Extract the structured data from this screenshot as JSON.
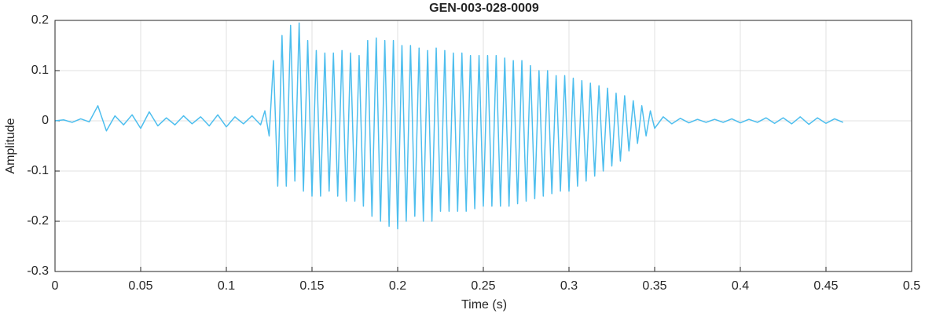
{
  "chart_data": {
    "type": "line",
    "title": "GEN-003-028-0009",
    "x_label": "Time (s)",
    "y_label": "Amplitude",
    "color": "#4dbeee",
    "grid": true,
    "xlim": [
      0,
      0.5
    ],
    "ylim": [
      -0.3,
      0.2
    ],
    "xticks": [
      0,
      0.05,
      0.1,
      0.15,
      0.2,
      0.25,
      0.3,
      0.35,
      0.4,
      0.45,
      0.5
    ],
    "yticks": [
      -0.3,
      -0.2,
      -0.1,
      0,
      0.1,
      0.2
    ],
    "x": [
      0,
      0.005,
      0.01,
      0.015,
      0.02,
      0.025,
      0.03,
      0.035,
      0.04,
      0.045,
      0.05,
      0.055,
      0.06,
      0.065,
      0.07,
      0.075,
      0.08,
      0.085,
      0.09,
      0.095,
      0.1,
      0.105,
      0.11,
      0.115,
      0.12,
      0.1225,
      0.125,
      0.1275,
      0.13,
      0.1325,
      0.135,
      0.1375,
      0.14,
      0.1425,
      0.145,
      0.1475,
      0.15,
      0.1525,
      0.155,
      0.1575,
      0.16,
      0.1625,
      0.165,
      0.1675,
      0.17,
      0.1725,
      0.175,
      0.1775,
      0.18,
      0.1825,
      0.185,
      0.1875,
      0.19,
      0.1925,
      0.195,
      0.1975,
      0.2,
      0.2025,
      0.205,
      0.2075,
      0.21,
      0.2125,
      0.215,
      0.2175,
      0.22,
      0.2225,
      0.225,
      0.2275,
      0.23,
      0.2325,
      0.235,
      0.2375,
      0.24,
      0.2425,
      0.245,
      0.2475,
      0.25,
      0.2525,
      0.255,
      0.2575,
      0.26,
      0.2625,
      0.265,
      0.2675,
      0.27,
      0.2725,
      0.275,
      0.2775,
      0.28,
      0.2825,
      0.285,
      0.2875,
      0.29,
      0.2925,
      0.295,
      0.2975,
      0.3,
      0.3025,
      0.305,
      0.3075,
      0.31,
      0.3125,
      0.315,
      0.3175,
      0.32,
      0.3225,
      0.325,
      0.3275,
      0.33,
      0.3325,
      0.335,
      0.3375,
      0.34,
      0.3425,
      0.345,
      0.3475,
      0.35,
      0.355,
      0.36,
      0.365,
      0.37,
      0.375,
      0.38,
      0.385,
      0.39,
      0.395,
      0.4,
      0.405,
      0.41,
      0.415,
      0.42,
      0.425,
      0.43,
      0.435,
      0.44,
      0.445,
      0.45,
      0.455,
      0.46
    ],
    "values": [
      0,
      0.002,
      -0.003,
      0.004,
      -0.002,
      0.03,
      -0.02,
      0.01,
      -0.008,
      0.012,
      -0.015,
      0.018,
      -0.01,
      0.006,
      -0.008,
      0.01,
      -0.006,
      0.008,
      -0.01,
      0.012,
      -0.012,
      0.008,
      -0.006,
      0.01,
      -0.008,
      0.02,
      -0.03,
      0.12,
      -0.13,
      0.17,
      -0.13,
      0.19,
      -0.12,
      0.195,
      -0.14,
      0.16,
      -0.15,
      0.14,
      -0.15,
      0.135,
      -0.14,
      0.135,
      -0.15,
      0.14,
      -0.16,
      0.135,
      -0.16,
      0.13,
      -0.17,
      0.16,
      -0.19,
      0.165,
      -0.2,
      0.16,
      -0.21,
      0.16,
      -0.215,
      0.15,
      -0.2,
      0.15,
      -0.19,
      0.145,
      -0.2,
      0.14,
      -0.2,
      0.145,
      -0.18,
      0.14,
      -0.18,
      0.135,
      -0.18,
      0.135,
      -0.18,
      0.13,
      -0.175,
      0.13,
      -0.17,
      0.13,
      -0.17,
      0.13,
      -0.17,
      0.125,
      -0.17,
      0.12,
      -0.165,
      0.12,
      -0.16,
      0.11,
      -0.155,
      0.1,
      -0.15,
      0.1,
      -0.145,
      0.09,
      -0.14,
      0.09,
      -0.14,
      0.085,
      -0.13,
      0.08,
      -0.12,
      0.075,
      -0.11,
      0.07,
      -0.1,
      0.065,
      -0.09,
      0.055,
      -0.08,
      0.05,
      -0.06,
      0.04,
      -0.045,
      0.03,
      -0.03,
      0.02,
      -0.015,
      0.008,
      -0.006,
      0.005,
      -0.004,
      0.003,
      -0.003,
      0.003,
      -0.003,
      0.004,
      -0.004,
      0.003,
      -0.003,
      0.006,
      -0.005,
      0.006,
      -0.006,
      0.008,
      -0.007,
      0.006,
      -0.005,
      0.004,
      -0.003
    ]
  }
}
